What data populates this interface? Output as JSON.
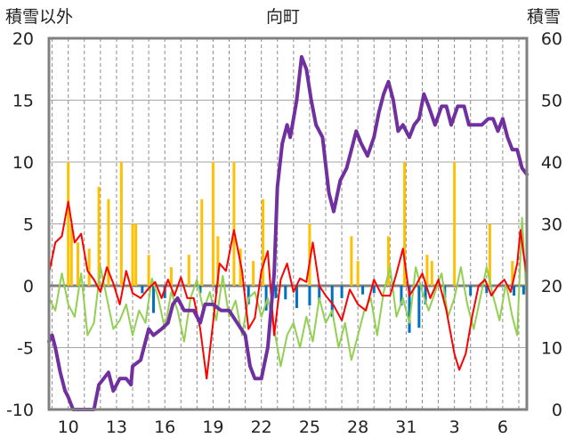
{
  "chart_data": {
    "type": "line",
    "title": "向町",
    "ylabel_left": "積雪以外",
    "ylabel_right": "積雪",
    "ylim_left": [
      -10,
      20
    ],
    "ylim_right": [
      0,
      60
    ],
    "yticks_left": [
      "20",
      "15",
      "10",
      "5",
      "0",
      "-5",
      "-10"
    ],
    "yticks_right": [
      "60",
      "50",
      "40",
      "30",
      "20",
      "10",
      "0"
    ],
    "xticks": [
      {
        "day": 10,
        "label": "10"
      },
      {
        "day": 13,
        "label": "13"
      },
      {
        "day": 16,
        "label": "16"
      },
      {
        "day": 19,
        "label": "19"
      },
      {
        "day": 22,
        "label": "22"
      },
      {
        "day": 25,
        "label": "25"
      },
      {
        "day": 28,
        "label": "28"
      },
      {
        "day": 31,
        "label": "31"
      },
      {
        "day": 34,
        "label": "3"
      },
      {
        "day": 37,
        "label": "6"
      }
    ],
    "x_range_days": [
      8.8,
      38.5
    ],
    "grid": true,
    "series": [
      {
        "id": "snow_depth",
        "axis": "right",
        "color": "#7030a0",
        "width": 4,
        "points": [
          [
            8.8,
            11
          ],
          [
            9.0,
            12
          ],
          [
            9.2,
            10
          ],
          [
            9.5,
            6
          ],
          [
            9.8,
            3
          ],
          [
            10.0,
            2
          ],
          [
            10.3,
            0
          ],
          [
            10.8,
            0
          ],
          [
            11.3,
            0
          ],
          [
            11.6,
            0
          ],
          [
            11.9,
            4
          ],
          [
            12.2,
            5
          ],
          [
            12.5,
            6
          ],
          [
            12.8,
            3
          ],
          [
            13.2,
            5
          ],
          [
            13.6,
            5
          ],
          [
            13.9,
            4
          ],
          [
            14.0,
            7
          ],
          [
            14.5,
            8
          ],
          [
            15.0,
            13
          ],
          [
            15.3,
            12
          ],
          [
            15.8,
            13
          ],
          [
            16.2,
            14
          ],
          [
            16.5,
            17
          ],
          [
            16.8,
            18
          ],
          [
            17.2,
            16
          ],
          [
            17.8,
            16
          ],
          [
            18.2,
            14
          ],
          [
            18.5,
            17
          ],
          [
            19.0,
            17
          ],
          [
            19.5,
            16
          ],
          [
            20.0,
            16
          ],
          [
            20.5,
            14
          ],
          [
            21.0,
            12
          ],
          [
            21.3,
            7
          ],
          [
            21.6,
            5
          ],
          [
            22.0,
            5
          ],
          [
            22.4,
            10
          ],
          [
            22.8,
            22
          ],
          [
            23.0,
            36
          ],
          [
            23.3,
            43
          ],
          [
            23.6,
            46
          ],
          [
            23.8,
            44
          ],
          [
            24.0,
            47
          ],
          [
            24.2,
            50
          ],
          [
            24.5,
            57
          ],
          [
            24.8,
            55
          ],
          [
            25.1,
            50
          ],
          [
            25.4,
            46
          ],
          [
            25.8,
            44
          ],
          [
            26.2,
            35
          ],
          [
            26.5,
            32
          ],
          [
            26.9,
            37
          ],
          [
            27.3,
            39
          ],
          [
            27.6,
            42
          ],
          [
            27.9,
            45
          ],
          [
            28.2,
            43
          ],
          [
            28.6,
            41
          ],
          [
            29.0,
            44
          ],
          [
            29.3,
            48
          ],
          [
            29.6,
            51
          ],
          [
            29.9,
            53
          ],
          [
            30.2,
            50
          ],
          [
            30.5,
            45
          ],
          [
            30.8,
            46
          ],
          [
            31.2,
            44
          ],
          [
            31.5,
            46
          ],
          [
            31.8,
            47
          ],
          [
            32.1,
            51
          ],
          [
            32.4,
            49
          ],
          [
            32.8,
            46
          ],
          [
            33.2,
            49
          ],
          [
            33.5,
            49
          ],
          [
            33.8,
            46
          ],
          [
            34.2,
            49
          ],
          [
            34.6,
            49
          ],
          [
            34.9,
            46
          ],
          [
            35.3,
            46
          ],
          [
            35.7,
            46
          ],
          [
            36.1,
            47
          ],
          [
            36.4,
            47
          ],
          [
            36.7,
            45
          ],
          [
            37.0,
            47
          ],
          [
            37.3,
            44
          ],
          [
            37.6,
            42
          ],
          [
            37.9,
            42
          ],
          [
            38.2,
            39
          ],
          [
            38.5,
            38
          ]
        ]
      },
      {
        "id": "temp_max",
        "axis": "left",
        "color": "#ff0000",
        "width": 2,
        "points": [
          [
            8.8,
            1.0
          ],
          [
            9.2,
            3.5
          ],
          [
            9.6,
            4.0
          ],
          [
            10.0,
            6.8
          ],
          [
            10.4,
            3.5
          ],
          [
            10.8,
            4.2
          ],
          [
            11.2,
            1.2
          ],
          [
            11.6,
            0.5
          ],
          [
            12.0,
            -0.5
          ],
          [
            12.4,
            1.5
          ],
          [
            12.8,
            0.2
          ],
          [
            13.2,
            -1.5
          ],
          [
            13.6,
            1.2
          ],
          [
            14.0,
            -0.6
          ],
          [
            14.5,
            -1.0
          ],
          [
            15.0,
            -0.2
          ],
          [
            15.4,
            0.3
          ],
          [
            15.8,
            -1.0
          ],
          [
            16.2,
            0.5
          ],
          [
            16.6,
            -0.8
          ],
          [
            17.0,
            0.7
          ],
          [
            17.4,
            -1.0
          ],
          [
            17.8,
            -1.0
          ],
          [
            18.2,
            -3.5
          ],
          [
            18.6,
            -7.5
          ],
          [
            19.0,
            -3.0
          ],
          [
            19.4,
            1.8
          ],
          [
            19.8,
            1.2
          ],
          [
            20.3,
            4.5
          ],
          [
            20.8,
            1.2
          ],
          [
            21.2,
            -3.5
          ],
          [
            21.6,
            -2.6
          ],
          [
            22.0,
            1.2
          ],
          [
            22.4,
            2.8
          ],
          [
            22.8,
            -4.0
          ],
          [
            23.2,
            0.5
          ],
          [
            23.6,
            1.8
          ],
          [
            24.0,
            -0.5
          ],
          [
            24.4,
            0.6
          ],
          [
            24.8,
            0.3
          ],
          [
            25.2,
            3.5
          ],
          [
            25.6,
            0.0
          ],
          [
            26.0,
            -0.8
          ],
          [
            26.5,
            -1.6
          ],
          [
            27.0,
            -2.8
          ],
          [
            27.5,
            -0.3
          ],
          [
            28.0,
            -1.5
          ],
          [
            28.5,
            -2.0
          ],
          [
            29.0,
            0.5
          ],
          [
            29.5,
            -0.8
          ],
          [
            30.0,
            -0.8
          ],
          [
            30.4,
            1.0
          ],
          [
            30.8,
            3.0
          ],
          [
            31.2,
            -0.8
          ],
          [
            31.6,
            0.0
          ],
          [
            32.0,
            1.0
          ],
          [
            32.5,
            -1.0
          ],
          [
            33.0,
            0.5
          ],
          [
            33.5,
            -2.0
          ],
          [
            34.0,
            -5.5
          ],
          [
            34.3,
            -6.8
          ],
          [
            34.7,
            -5.5
          ],
          [
            35.1,
            -2.5
          ],
          [
            35.5,
            0.0
          ],
          [
            35.9,
            0.5
          ],
          [
            36.3,
            -0.8
          ],
          [
            36.7,
            0.0
          ],
          [
            37.1,
            0.5
          ],
          [
            37.5,
            -0.5
          ],
          [
            37.9,
            1.8
          ],
          [
            38.1,
            4.5
          ],
          [
            38.3,
            2.5
          ],
          [
            38.5,
            0.8
          ]
        ]
      },
      {
        "id": "temp_min",
        "axis": "left",
        "color": "#92d050",
        "width": 2,
        "points": [
          [
            8.8,
            -1.0
          ],
          [
            9.2,
            -2.0
          ],
          [
            9.6,
            1.0
          ],
          [
            10.0,
            -1.5
          ],
          [
            10.4,
            -2.5
          ],
          [
            10.8,
            1.0
          ],
          [
            11.2,
            -4.0
          ],
          [
            11.6,
            -3.0
          ],
          [
            12.0,
            1.5
          ],
          [
            12.4,
            -1.0
          ],
          [
            12.8,
            -3.5
          ],
          [
            13.2,
            -2.8
          ],
          [
            13.6,
            -1.5
          ],
          [
            14.0,
            -4.0
          ],
          [
            14.4,
            -2.0
          ],
          [
            14.8,
            -3.0
          ],
          [
            15.2,
            0.6
          ],
          [
            15.6,
            -1.0
          ],
          [
            16.0,
            -3.5
          ],
          [
            16.4,
            -0.5
          ],
          [
            16.8,
            -2.0
          ],
          [
            17.2,
            -4.5
          ],
          [
            17.6,
            -1.0
          ],
          [
            18.0,
            0.5
          ],
          [
            18.4,
            -2.0
          ],
          [
            18.8,
            -0.5
          ],
          [
            19.2,
            -2.8
          ],
          [
            19.6,
            0.8
          ],
          [
            20.0,
            -2.5
          ],
          [
            20.4,
            -1.2
          ],
          [
            20.8,
            -4.0
          ],
          [
            21.2,
            -1.0
          ],
          [
            21.6,
            -0.5
          ],
          [
            22.0,
            -2.5
          ],
          [
            22.4,
            -1.0
          ],
          [
            22.8,
            -3.5
          ],
          [
            23.2,
            -6.5
          ],
          [
            23.6,
            -4.0
          ],
          [
            24.0,
            -3.0
          ],
          [
            24.4,
            -5.0
          ],
          [
            24.8,
            -2.5
          ],
          [
            25.2,
            -4.5
          ],
          [
            25.6,
            -1.0
          ],
          [
            26.0,
            -3.0
          ],
          [
            26.4,
            -2.0
          ],
          [
            26.8,
            -5.0
          ],
          [
            27.2,
            -3.0
          ],
          [
            27.6,
            -6.0
          ],
          [
            28.0,
            -4.0
          ],
          [
            28.4,
            -2.0
          ],
          [
            28.8,
            -1.0
          ],
          [
            29.2,
            -4.0
          ],
          [
            29.6,
            -0.5
          ],
          [
            30.0,
            1.5
          ],
          [
            30.4,
            -2.5
          ],
          [
            30.8,
            -1.0
          ],
          [
            31.2,
            -3.0
          ],
          [
            31.6,
            1.5
          ],
          [
            32.0,
            -0.5
          ],
          [
            32.4,
            -2.0
          ],
          [
            32.8,
            -0.5
          ],
          [
            33.2,
            1.0
          ],
          [
            33.6,
            -2.5
          ],
          [
            34.0,
            -1.0
          ],
          [
            34.4,
            1.5
          ],
          [
            34.8,
            -1.5
          ],
          [
            35.2,
            -3.5
          ],
          [
            35.6,
            -1.0
          ],
          [
            36.0,
            1.5
          ],
          [
            36.4,
            -0.8
          ],
          [
            36.8,
            -2.8
          ],
          [
            37.2,
            0.2
          ],
          [
            37.6,
            -2.5
          ],
          [
            37.9,
            -4.0
          ],
          [
            38.2,
            5.5
          ],
          [
            38.5,
            -1.5
          ]
        ]
      }
    ],
    "bars": [
      {
        "id": "snowfall",
        "axis": "left",
        "color": "#ffc000",
        "points": [
          [
            10.0,
            10.0
          ],
          [
            10.2,
            5.0
          ],
          [
            10.6,
            3.5
          ],
          [
            11.3,
            3.0
          ],
          [
            11.9,
            8.0
          ],
          [
            12.5,
            7.0
          ],
          [
            13.3,
            10.0
          ],
          [
            14.0,
            5.0
          ],
          [
            14.2,
            5.0
          ],
          [
            15.0,
            2.5
          ],
          [
            16.4,
            1.5
          ],
          [
            17.5,
            2.5
          ],
          [
            18.3,
            7.0
          ],
          [
            19.0,
            10.0
          ],
          [
            19.3,
            4.0
          ],
          [
            20.3,
            10.0
          ],
          [
            20.7,
            3.0
          ],
          [
            21.5,
            2.0
          ],
          [
            22.1,
            7.0
          ],
          [
            25.0,
            5.0
          ],
          [
            27.6,
            4.0
          ],
          [
            28.0,
            2.0
          ],
          [
            29.9,
            4.0
          ],
          [
            30.9,
            10.0
          ],
          [
            32.3,
            2.5
          ],
          [
            32.6,
            2.0
          ],
          [
            34.0,
            10.0
          ],
          [
            36.2,
            5.0
          ],
          [
            37.6,
            2.0
          ]
        ]
      },
      {
        "id": "precip",
        "axis": "left",
        "color": "#0070c0",
        "points": [
          [
            14.6,
            -0.6
          ],
          [
            15.3,
            -2.2
          ],
          [
            16.0,
            -1.0
          ],
          [
            18.2,
            -0.6
          ],
          [
            19.2,
            -0.6
          ],
          [
            21.2,
            -1.5
          ],
          [
            22.3,
            -2.0
          ],
          [
            22.9,
            -1.0
          ],
          [
            23.5,
            -1.1
          ],
          [
            24.2,
            -1.8
          ],
          [
            25.0,
            -1.6
          ],
          [
            25.6,
            -1.3
          ],
          [
            26.4,
            -2.5
          ],
          [
            27.0,
            -1.0
          ],
          [
            28.3,
            -0.7
          ],
          [
            29.0,
            -0.6
          ],
          [
            30.7,
            -1.6
          ],
          [
            31.2,
            -3.8
          ],
          [
            31.8,
            -3.4
          ],
          [
            32.2,
            -1.5
          ],
          [
            33.4,
            -1.0
          ],
          [
            35.0,
            -0.8
          ],
          [
            36.0,
            -0.6
          ],
          [
            37.7,
            -0.8
          ],
          [
            38.3,
            -0.7
          ]
        ]
      }
    ]
  }
}
